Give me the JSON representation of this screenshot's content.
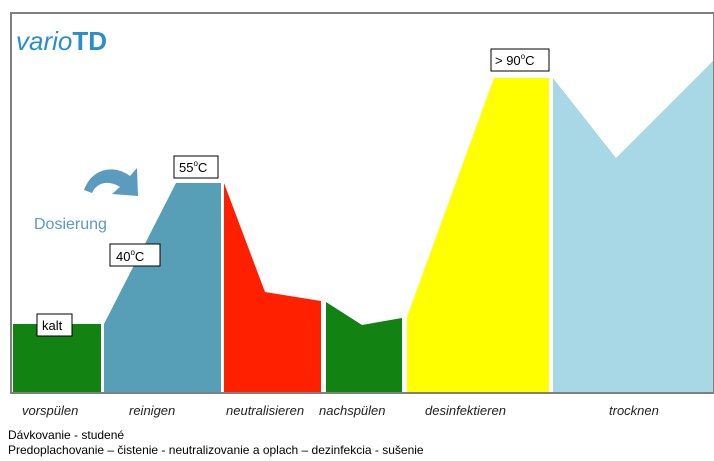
{
  "title": {
    "part1": "vario",
    "part2": "TD",
    "color": "#2a8fc9"
  },
  "temperature_labels": {
    "kalt": "kalt",
    "t40": "40",
    "t55": "55",
    "t90": "> 90",
    "degree": "o",
    "unit": "C"
  },
  "dosing": {
    "label": "Dosierung",
    "color": "#5b9bbd"
  },
  "phases": [
    {
      "label": "vorspülen",
      "color": "#128212"
    },
    {
      "label": "reinigen",
      "color": "#569fb6"
    },
    {
      "label": "neutralisieren",
      "color": "#ff2000"
    },
    {
      "label": "nachspülen",
      "color": "#128212"
    },
    {
      "label": "desinfektieren",
      "color": "#ffff00"
    },
    {
      "label": "trocknen",
      "color": "#a8d8e6"
    }
  ],
  "caption": {
    "line1": "Dávkovanie - studené",
    "line2": "Predoplachovanie – čistenie - neutralizovanie a oplach – dezinfekcia - sušenie"
  }
}
